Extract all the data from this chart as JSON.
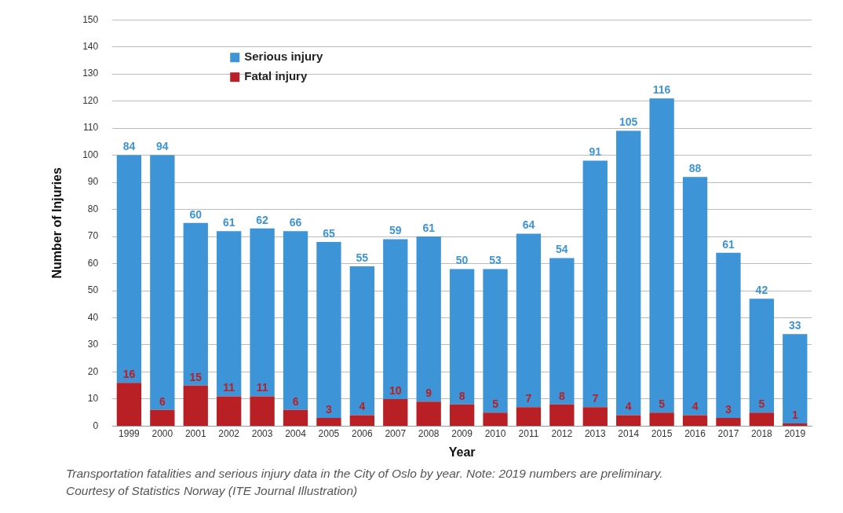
{
  "chart_data": {
    "type": "bar",
    "stacked": true,
    "xlabel": "Year",
    "ylabel": "Number of Injuries",
    "categories": [
      "1999",
      "2000",
      "2001",
      "2002",
      "2003",
      "2004",
      "2005",
      "2006",
      "2007",
      "2008",
      "2009",
      "2010",
      "2011",
      "2012",
      "2013",
      "2014",
      "2015",
      "2016",
      "2017",
      "2018",
      "2019"
    ],
    "series": [
      {
        "name": "Fatal injury",
        "color": "#b82025",
        "values": [
          16,
          6,
          15,
          11,
          11,
          6,
          3,
          4,
          10,
          9,
          8,
          5,
          7,
          8,
          7,
          4,
          5,
          4,
          3,
          5,
          1
        ]
      },
      {
        "name": "Serious injury",
        "color": "#3d94d6",
        "values": [
          84,
          94,
          60,
          61,
          62,
          66,
          65,
          55,
          59,
          61,
          50,
          53,
          64,
          54,
          91,
          105,
          116,
          88,
          61,
          42,
          33
        ]
      }
    ],
    "ylim": [
      0,
      150
    ],
    "yticks": [
      0,
      10,
      20,
      30,
      40,
      50,
      60,
      70,
      80,
      90,
      100,
      110,
      120,
      130,
      140,
      150
    ],
    "grid": "y",
    "legend": "top left",
    "data_labels": true,
    "annotations": [
      "Transportation fatalities and serious injury data in the City of Oslo by year. Note: 2019 numbers are preliminary.",
      "Courtesy of Statistics Norway (ITE Journal Illustration)"
    ]
  }
}
